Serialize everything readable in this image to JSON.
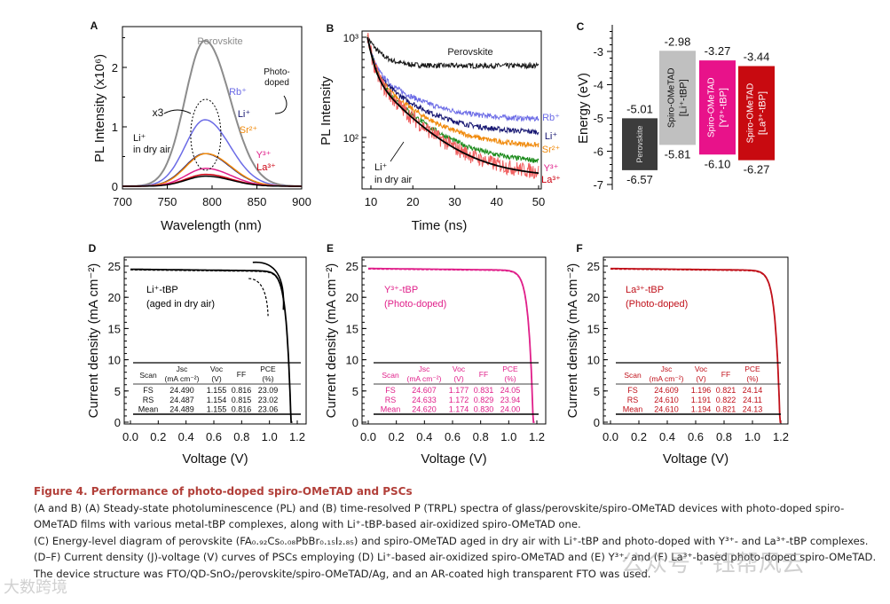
{
  "chart_data": [
    {
      "panel": "A",
      "type": "line",
      "xlabel": "Wavelength (nm)",
      "ylabel": "PL Intensity (x10⁶)",
      "xlim": [
        700,
        900
      ],
      "ylim": [
        -0.1,
        2.65
      ],
      "xticks": [
        700,
        750,
        800,
        850,
        900
      ],
      "yticks": [
        0,
        1,
        2
      ],
      "series": [
        {
          "name": "Perovskite",
          "peak": 2.45,
          "center": 792,
          "color": "#8c8c8c"
        },
        {
          "name": "Rb⁺",
          "peak": 1.12,
          "center": 792,
          "color": "#6b6be6"
        },
        {
          "name": "Li⁺",
          "peak": 0.55,
          "center": 792,
          "color": "#141470"
        },
        {
          "name": "Sr²⁺",
          "peak": 0.55,
          "center": 793,
          "color": "#f0890a"
        },
        {
          "name": "Y³⁺",
          "peak": 0.3,
          "center": 793,
          "color": "#e0208a"
        },
        {
          "name": "La³⁺",
          "peak": 0.2,
          "center": 793,
          "color": "#cc0010"
        },
        {
          "name": "Li⁺ in dry air",
          "peak": 0.17,
          "center": 793,
          "color": "#000000"
        }
      ],
      "annotations": [
        "x3",
        "Photo-",
        "doped",
        "Li⁺",
        "in dry air"
      ]
    },
    {
      "panel": "B",
      "type": "line",
      "xlabel": "Time (ns)",
      "ylabel": "PL Intensity",
      "yscale": "log",
      "xlim": [
        8,
        50
      ],
      "ylim": [
        30,
        1100
      ],
      "xticks": [
        10,
        20,
        30,
        40,
        50
      ],
      "yticks": [
        "10³",
        "10²"
      ],
      "series": [
        {
          "name": "Perovskite",
          "end_value": 520,
          "color": "#1a1a1a"
        },
        {
          "name": "Rb⁺",
          "end_value": 150,
          "color": "#6b6be6"
        },
        {
          "name": "Li⁺",
          "end_value": 110,
          "color": "#141470"
        },
        {
          "name": "Sr²⁺",
          "end_value": 80,
          "color": "#f0890a"
        },
        {
          "name": "Y³⁺",
          "end_value": 55,
          "color": "#1a8a1a"
        },
        {
          "name": "La³⁺",
          "end_value": 42,
          "color": "#f06060"
        },
        {
          "name": "Li⁺ in dry air",
          "end_value": 40,
          "color": "#000000"
        }
      ],
      "annotations": [
        "Li⁺",
        "in dry air"
      ]
    },
    {
      "panel": "C",
      "type": "bar",
      "ylabel": "Energy (eV)",
      "ylim": [
        -7.2,
        -2.2
      ],
      "yticks": [
        -3,
        -4,
        -5,
        -6,
        -7
      ],
      "bars": [
        {
          "name": "Perovskite",
          "top": -5.01,
          "bottom": -6.57,
          "top_label": "-5.01",
          "bottom_label": "-6.57",
          "color": "#3c3c3c",
          "text_color": "#dddddd"
        },
        {
          "name": "Spiro-OMeTAD",
          "name2": "[Li⁺-tBP]",
          "top": -2.98,
          "bottom": -5.81,
          "top_label": "-2.98",
          "bottom_label": "-5.81",
          "color": "#c0c0c0",
          "text_color": "#111111"
        },
        {
          "name": "Spiro-OMeTAD",
          "name2": "[Y³⁺-tBP]",
          "top": -3.27,
          "bottom": -6.1,
          "top_label": "-3.27",
          "bottom_label": "-6.10",
          "color": "#e8128a",
          "text_color": "#ffffff"
        },
        {
          "name": "Spiro-OMeTAD",
          "name2": "[La³⁺-tBP]",
          "top": -3.44,
          "bottom": -6.27,
          "top_label": "-3.44",
          "bottom_label": "-6.27",
          "color": "#c80a10",
          "text_color": "#ffffff"
        }
      ]
    },
    {
      "panel": "D",
      "type": "line",
      "xlabel": "Voltage (V)",
      "ylabel": "Current density (mA cm⁻²)",
      "xlim": [
        0,
        1.25
      ],
      "ylim": [
        0,
        26.5
      ],
      "xticks": [
        "0.0",
        "0.2",
        "0.4",
        "0.6",
        "0.8",
        "1.0",
        "1.2"
      ],
      "yticks": [
        0,
        5,
        10,
        15,
        20,
        25
      ],
      "label": [
        "Li⁺-tBP",
        "(aged in dry air)"
      ],
      "color": "#000000",
      "jsc": 24.49,
      "voc": 1.155,
      "table": {
        "headers": [
          [
            "Scan",
            ""
          ],
          [
            "Jsc",
            "(mA cm⁻²)"
          ],
          [
            "Voc",
            "(V)"
          ],
          [
            "FF",
            ""
          ],
          [
            "PCE",
            "(%)"
          ]
        ],
        "rows": [
          [
            "FS",
            "24.490",
            "1.155",
            "0.816",
            "23.09"
          ],
          [
            "RS",
            "24.487",
            "1.154",
            "0.815",
            "23.02"
          ],
          [
            "Mean",
            "24.489",
            "1.155",
            "0.816",
            "23.06"
          ]
        ]
      }
    },
    {
      "panel": "E",
      "type": "line",
      "xlabel": "Voltage (V)",
      "ylabel": "Current density (mA cm⁻²)",
      "xlim": [
        0,
        1.25
      ],
      "ylim": [
        0,
        26.5
      ],
      "xticks": [
        "0.0",
        "0.2",
        "0.4",
        "0.6",
        "0.8",
        "1.0",
        "1.2"
      ],
      "yticks": [
        0,
        5,
        10,
        15,
        20,
        25
      ],
      "label": [
        "Y³⁺-tBP",
        "(Photo-doped)"
      ],
      "color": "#e0208a",
      "jsc": 24.62,
      "voc": 1.174,
      "table": {
        "headers": [
          [
            "Scan",
            ""
          ],
          [
            "Jsc",
            "(mA cm⁻²)"
          ],
          [
            "Voc",
            "(V)"
          ],
          [
            "FF",
            ""
          ],
          [
            "PCE",
            "(%)"
          ]
        ],
        "rows": [
          [
            "FS",
            "24.607",
            "1.177",
            "0.831",
            "24.05"
          ],
          [
            "RS",
            "24.633",
            "1.172",
            "0.829",
            "23.94"
          ],
          [
            "Mean",
            "24.620",
            "1.174",
            "0.830",
            "24.00"
          ]
        ]
      }
    },
    {
      "panel": "F",
      "type": "line",
      "xlabel": "Voltage (V)",
      "ylabel": "Current density (mA cm⁻²)",
      "xlim": [
        0,
        1.25
      ],
      "ylim": [
        0,
        26.5
      ],
      "xticks": [
        "0.0",
        "0.2",
        "0.4",
        "0.6",
        "0.8",
        "1.0",
        "1.2"
      ],
      "yticks": [
        0,
        5,
        10,
        15,
        20,
        25
      ],
      "label": [
        "La³⁺-tBP",
        "(Photo-doped)"
      ],
      "color": "#c0101a",
      "jsc": 24.61,
      "voc": 1.194,
      "table": {
        "headers": [
          [
            "Scan",
            ""
          ],
          [
            "Jsc",
            "(mA cm⁻²)"
          ],
          [
            "Voc",
            "(V)"
          ],
          [
            "FF",
            ""
          ],
          [
            "PCE",
            "(%)"
          ]
        ],
        "rows": [
          [
            "FS",
            "24.609",
            "1.196",
            "0.821",
            "24.14"
          ],
          [
            "RS",
            "24.610",
            "1.191",
            "0.822",
            "24.11"
          ],
          [
            "Mean",
            "24.610",
            "1.194",
            "0.821",
            "24.13"
          ]
        ]
      }
    }
  ],
  "caption": {
    "title": "Figure 4.  Performance of photo-doped spiro-OMeTAD and PSCs",
    "lines": [
      "(A and B) (A) Steady-state photoluminescence (PL) and (B) time-resolved P (TRPL) spectra of glass/perovskite/spiro-OMeTAD devices with photo-doped spiro-OMeTAD films with various metal-tBP complexes, along with Li⁺-tBP-based air-oxidized spiro-OMeTAD one.",
      "(C) Energy-level diagram of perovskite (FA₀.₉₂Cs₀.₀₈PbBr₀.₁₅I₂.₈₅) and spiro-OMeTAD aged in dry air with Li⁺-tBP and photo-doped with Y³⁺- and La³⁺-tBP complexes.",
      "(D–F) Current density (J)-voltage (V) curves of PSCs employing (D) Li⁺-based air-oxidized spiro-OMeTAD and (E) Y³⁺- and (F) La³⁺-based photo-doped spiro-OMeTAD. The device structure was FTO/QD-SnO₂/perovskite/spiro-OMeTAD/Ag, and an AR-coated high transparent FTO was used."
    ]
  },
  "watermarks": [
    "公众号 · 钰帮风云",
    "大数跨境"
  ]
}
